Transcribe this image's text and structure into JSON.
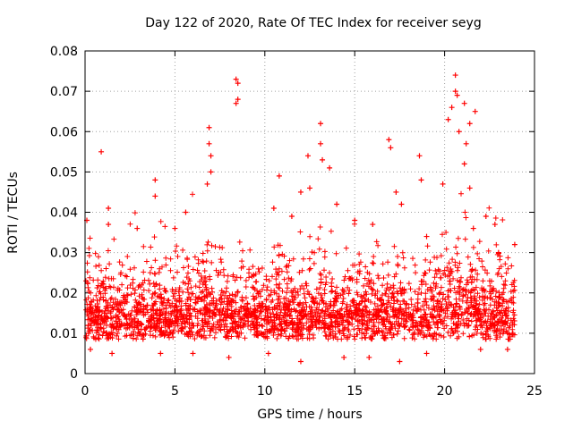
{
  "chart_data": {
    "type": "scatter",
    "title": "Day 122 of 2020, Rate Of TEC Index for receiver seyg",
    "xlabel": "GPS time / hours",
    "ylabel": "ROTI / TECUs",
    "xlim": [
      0,
      25
    ],
    "ylim": [
      0,
      0.08
    ],
    "xticks": [
      "0",
      "5",
      "10",
      "15",
      "20",
      "25"
    ],
    "yticks": [
      "0",
      "0.01",
      "0.02",
      "0.03",
      "0.04",
      "0.05",
      "0.06",
      "0.07",
      "0.08"
    ],
    "grid": true,
    "marker": "+",
    "color": "#ff0000",
    "series": [
      {
        "points": [
          [
            0.1,
            0.038
          ],
          [
            0.9,
            0.055
          ],
          [
            1.3,
            0.041
          ],
          [
            1.3,
            0.037
          ],
          [
            2.9,
            0.036
          ],
          [
            3.9,
            0.048
          ],
          [
            3.9,
            0.044
          ],
          [
            5.0,
            0.036
          ],
          [
            5.6,
            0.04
          ],
          [
            6.8,
            0.047
          ],
          [
            6.9,
            0.061
          ],
          [
            6.9,
            0.057
          ],
          [
            7.0,
            0.054
          ],
          [
            7.0,
            0.05
          ],
          [
            8.4,
            0.073
          ],
          [
            8.5,
            0.072
          ],
          [
            8.4,
            0.067
          ],
          [
            8.5,
            0.068
          ],
          [
            10.5,
            0.041
          ],
          [
            10.8,
            0.049
          ],
          [
            11.5,
            0.039
          ],
          [
            12.0,
            0.045
          ],
          [
            12.4,
            0.054
          ],
          [
            12.5,
            0.046
          ],
          [
            13.1,
            0.062
          ],
          [
            13.1,
            0.057
          ],
          [
            13.2,
            0.053
          ],
          [
            13.6,
            0.051
          ],
          [
            14.0,
            0.042
          ],
          [
            15.0,
            0.038
          ],
          [
            16.0,
            0.037
          ],
          [
            16.9,
            0.058
          ],
          [
            17.0,
            0.056
          ],
          [
            17.3,
            0.045
          ],
          [
            17.6,
            0.042
          ],
          [
            18.6,
            0.054
          ],
          [
            18.7,
            0.048
          ],
          [
            19.0,
            0.034
          ],
          [
            19.9,
            0.047
          ],
          [
            20.2,
            0.063
          ],
          [
            20.4,
            0.066
          ],
          [
            20.6,
            0.074
          ],
          [
            20.6,
            0.07
          ],
          [
            20.7,
            0.069
          ],
          [
            20.8,
            0.06
          ],
          [
            21.1,
            0.067
          ],
          [
            21.1,
            0.052
          ],
          [
            21.2,
            0.057
          ],
          [
            21.4,
            0.062
          ],
          [
            21.4,
            0.046
          ],
          [
            21.7,
            0.065
          ],
          [
            21.6,
            0.036
          ],
          [
            22.3,
            0.039
          ],
          [
            22.8,
            0.037
          ],
          [
            23.0,
            0.03
          ],
          [
            23.9,
            0.032
          ],
          [
            0.2,
            0.01
          ],
          [
            0.3,
            0.006
          ],
          [
            12.0,
            0.003
          ],
          [
            17.5,
            0.003
          ],
          [
            23.5,
            0.006
          ],
          [
            8.0,
            0.004
          ],
          [
            1.5,
            0.005
          ],
          [
            22.0,
            0.006
          ],
          [
            4.2,
            0.005
          ],
          [
            10.2,
            0.005
          ],
          [
            14.4,
            0.004
          ],
          [
            19.0,
            0.005
          ],
          [
            6.0,
            0.005
          ],
          [
            15.8,
            0.004
          ]
        ]
      }
    ]
  }
}
